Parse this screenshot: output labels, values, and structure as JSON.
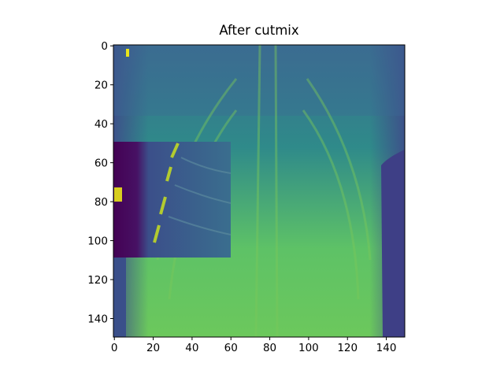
{
  "chart_data": {
    "type": "image",
    "title": "After cutmix",
    "xlim": [
      -0.5,
      149.5
    ],
    "xticks": [
      0,
      20,
      40,
      60,
      80,
      100,
      120,
      140
    ],
    "ylim": [
      149.5,
      -0.5
    ],
    "yticks": [
      0,
      20,
      40,
      60,
      80,
      100,
      120,
      140
    ],
    "colormap": "viridis"
  }
}
